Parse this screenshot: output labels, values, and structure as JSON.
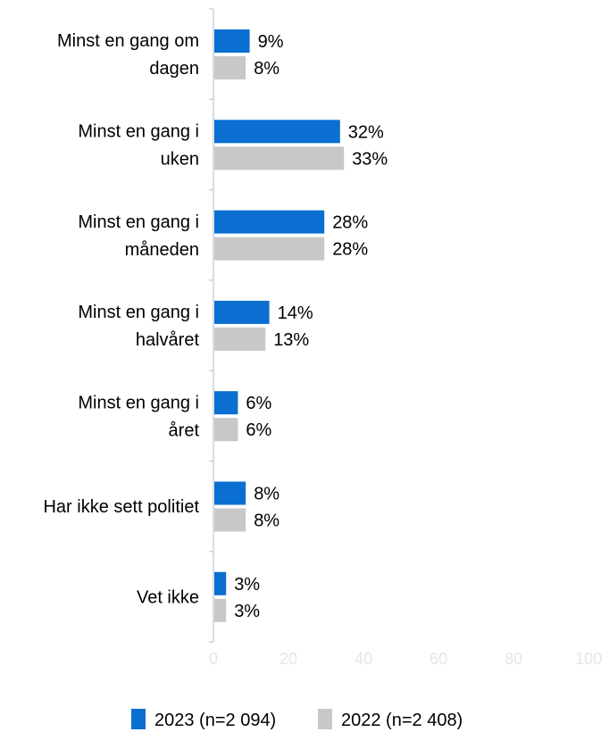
{
  "chart_data": {
    "type": "bar",
    "orientation": "horizontal",
    "categories": [
      [
        "Minst en gang om",
        "dagen"
      ],
      [
        "Minst en gang i",
        "uken"
      ],
      [
        "Minst en gang i",
        "måneden"
      ],
      [
        "Minst en gang i",
        "halvåret"
      ],
      [
        "Minst en gang i",
        "året"
      ],
      [
        "Har ikke sett politiet"
      ],
      [
        "Vet ikke"
      ]
    ],
    "series": [
      {
        "name": "2023 (n=2 094)",
        "color": "#0a6fd1",
        "values": [
          9,
          32,
          28,
          14,
          6,
          8,
          3
        ],
        "labels": [
          "9%",
          "32%",
          "28%",
          "14%",
          "6%",
          "8%",
          "3%"
        ]
      },
      {
        "name": "2022 (n=2 408)",
        "color": "#c8c8c8",
        "values": [
          8,
          33,
          28,
          13,
          6,
          8,
          3
        ],
        "labels": [
          "8%",
          "33%",
          "28%",
          "13%",
          "6%",
          "8%",
          "3%"
        ]
      }
    ],
    "xlim": [
      0,
      100
    ],
    "ticks": [
      "0",
      "20",
      "40",
      "60",
      "80",
      "100"
    ],
    "legend_position": "bottom",
    "grid": false
  }
}
